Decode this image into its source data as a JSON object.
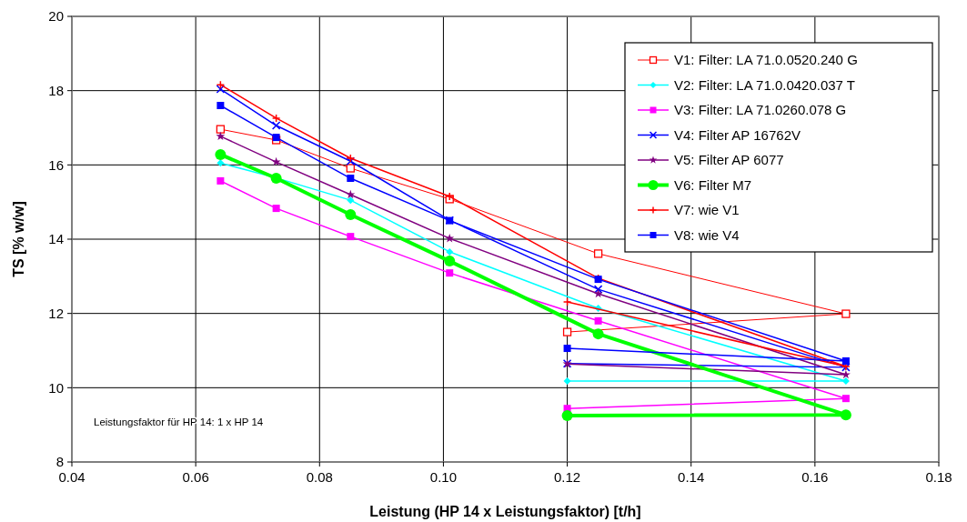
{
  "chart_data": {
    "type": "line",
    "xlabel": "Leistung (HP 14 x Leistungsfaktor) [t/h]",
    "ylabel": "TS [% w/w]",
    "x": [
      0.064,
      0.073,
      0.085,
      0.101,
      0.125,
      0.165,
      0.12
    ],
    "xlim": [
      0.04,
      0.18
    ],
    "xticks": [
      0.04,
      0.06,
      0.08,
      {
        "value": 0.1,
        "label": "0.10"
      },
      0.12,
      0.14,
      0.16,
      0.18
    ],
    "ylim": [
      8,
      20
    ],
    "yticks": [
      8,
      10,
      12,
      14,
      16,
      18,
      20
    ],
    "grid": true,
    "legend": "top right",
    "annotations": [
      "Leistungsfaktor für HP 14: 1 x HP 14"
    ],
    "series": [
      {
        "name": "V1: Filter: LA 71.0.0520.240 G",
        "color": "#ff0000",
        "marker": "square-open",
        "values": [
          16.96,
          16.67,
          15.91,
          15.08,
          13.61,
          11.99,
          11.5
        ]
      },
      {
        "name": "V2: Filter: LA 71.0.0420.037 T",
        "color": "#00ffff",
        "marker": "diamond",
        "values": [
          16.05,
          15.65,
          15.05,
          13.66,
          12.14,
          10.18,
          10.18
        ]
      },
      {
        "name": "V3: Filter: LA 71.0260.078 G",
        "color": "#ff00ff",
        "marker": "square",
        "values": [
          15.57,
          14.83,
          14.07,
          13.09,
          11.8,
          9.71,
          9.44
        ]
      },
      {
        "name": "V4: Filter AP 16762V",
        "color": "#0000ff",
        "marker": "x",
        "values": [
          18.04,
          17.06,
          16.1,
          14.51,
          12.65,
          10.55,
          10.65
        ]
      },
      {
        "name": "V5: Filter AP 6077",
        "color": "#800080",
        "marker": "star",
        "values": [
          16.77,
          16.08,
          15.2,
          14.02,
          12.53,
          10.35,
          10.64
        ]
      },
      {
        "name": "V6: Filter M7",
        "color": "#00ff00",
        "marker": "circle",
        "values": [
          16.28,
          15.64,
          14.66,
          13.41,
          11.45,
          9.27,
          9.25
        ]
      },
      {
        "name": "V7: wie V1",
        "color": "#ff0000",
        "marker": "plus",
        "values": [
          18.16,
          17.26,
          16.18,
          15.15,
          12.95,
          10.57,
          12.31
        ]
      },
      {
        "name": "V8: wie V4",
        "color": "#0000ff",
        "marker": "square",
        "values": [
          17.6,
          16.74,
          15.64,
          14.5,
          12.92,
          10.72,
          11.06
        ]
      }
    ]
  }
}
